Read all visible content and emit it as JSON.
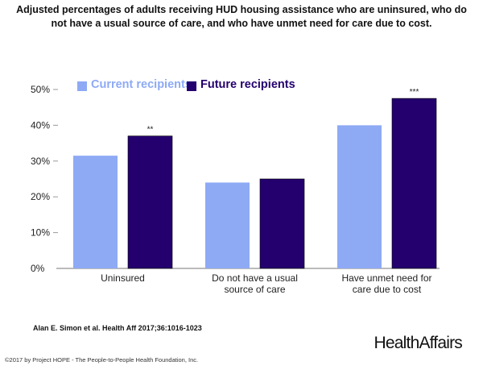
{
  "title": "Adjusted percentages of adults receiving HUD housing assistance who are uninsured, who do not have a usual source of care, and who have unmet need for care due to cost.",
  "citation": "Alan E. Simon et al. Health Aff 2017;36:1016-1023",
  "copyright": "©2017 by Project HOPE - The People-to-People Health Foundation, Inc.",
  "logo": "HealthAffairs",
  "colors": {
    "current": "#8eaaf5",
    "future": "#24006e"
  },
  "chart_data": {
    "type": "bar",
    "title": "Adjusted percentages of adults receiving HUD housing assistance who are uninsured, who do not have a usual source of care, and who have unmet need for care due to cost.",
    "categories": [
      [
        "Uninsured"
      ],
      [
        "Do not have a usual",
        "source of care"
      ],
      [
        "Have unmet need for",
        "care due to cost"
      ]
    ],
    "series": [
      {
        "name": "Current recipients",
        "values": [
          31.5,
          24,
          40
        ],
        "annotations": [
          "",
          "",
          ""
        ]
      },
      {
        "name": "Future recipients",
        "values": [
          37,
          25,
          47.5
        ],
        "annotations": [
          "**",
          "",
          "***"
        ]
      }
    ],
    "yticks": [
      "0%",
      "10%",
      "20%",
      "30%",
      "40%",
      "50%"
    ],
    "ylim": [
      0,
      50
    ],
    "legend": "top-left",
    "grid": false
  }
}
